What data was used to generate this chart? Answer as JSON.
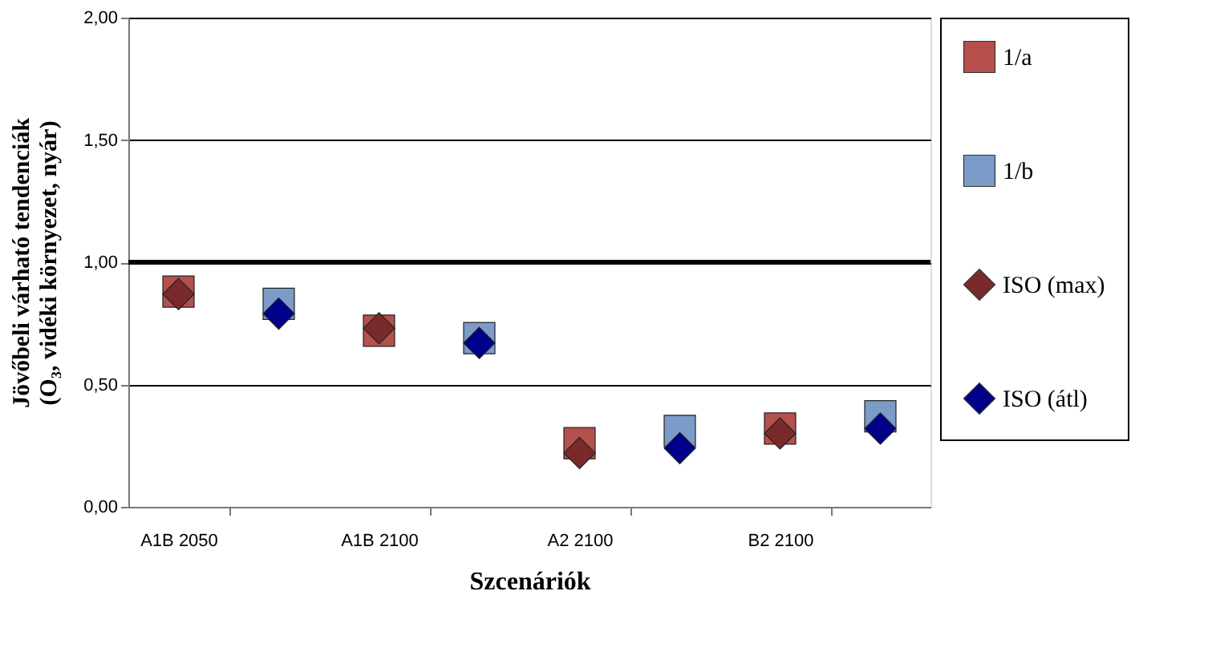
{
  "chart_data": {
    "type": "scatter",
    "xlabel": "Szcenáriók",
    "ylabel": [
      "Jövőbeli várható tendenciák",
      "(O₃, vidéki környezet, nyár)"
    ],
    "categories": [
      "A1B 2050",
      null,
      "A1B 2100",
      null,
      "A2 2100",
      null,
      "B2 2100",
      null
    ],
    "series": [
      {
        "name": "1/a",
        "color": "#b5504c",
        "marker": "square",
        "values": [
          0.88,
          null,
          0.72,
          null,
          0.26,
          null,
          0.32,
          null
        ]
      },
      {
        "name": "1/b",
        "color": "#7b9bc8",
        "marker": "square",
        "values": [
          null,
          0.83,
          null,
          0.69,
          null,
          0.31,
          null,
          0.37
        ]
      },
      {
        "name": "ISO (max)",
        "color": "#7a2a2a",
        "marker": "diamond",
        "values": [
          0.87,
          null,
          0.73,
          null,
          0.22,
          null,
          0.3,
          null
        ]
      },
      {
        "name": "ISO (átl)",
        "color": "#00008b",
        "marker": "diamond",
        "values": [
          null,
          0.79,
          null,
          0.67,
          null,
          0.24,
          null,
          0.32
        ]
      }
    ],
    "ylim": [
      0,
      2
    ],
    "yticks": [
      {
        "value": 0,
        "label": "0,00"
      },
      {
        "value": 0.5,
        "label": "0,50"
      },
      {
        "value": 1,
        "label": "1,00"
      },
      {
        "value": 1.5,
        "label": "1,50"
      },
      {
        "value": 2,
        "label": "2,00"
      }
    ],
    "ref_lines": [
      {
        "axis": "y",
        "value": 1,
        "color": "#000000"
      }
    ],
    "grid": "y",
    "legend": "right"
  }
}
